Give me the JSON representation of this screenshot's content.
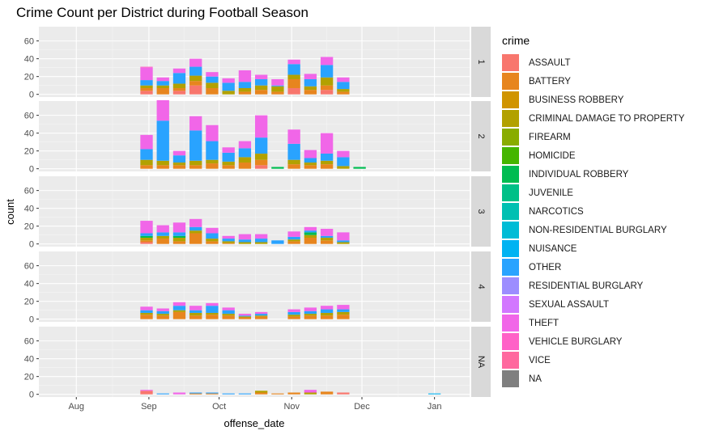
{
  "title": "Crime Count per District during Football Season",
  "chart_data": {
    "type": "bar",
    "stacked": true,
    "title": "Crime Count per District during Football Season",
    "xlabel": "offense_date",
    "ylabel": "count",
    "x_ticks": [
      "Aug",
      "Sep",
      "Oct",
      "Nov",
      "Dec",
      "Jan"
    ],
    "x_tick_dates": [
      "2017-08-01",
      "2017-09-01",
      "2017-10-01",
      "2017-11-01",
      "2017-12-01",
      "2018-01-01"
    ],
    "xlim": [
      "2017-07-16",
      "2018-01-16"
    ],
    "y_ticks": [
      0,
      20,
      40,
      60
    ],
    "ylim": [
      -3,
      76
    ],
    "grid": true,
    "legend_position": "right",
    "legend_title": "crime",
    "categories": [
      {
        "name": "ASSAULT",
        "color": "#F8766D"
      },
      {
        "name": "BATTERY",
        "color": "#E7851E"
      },
      {
        "name": "BUSINESS ROBBERY",
        "color": "#D09400"
      },
      {
        "name": "CRIMINAL DAMAGE TO PROPERTY",
        "color": "#B2A100"
      },
      {
        "name": "FIREARM",
        "color": "#89AC00"
      },
      {
        "name": "HOMICIDE",
        "color": "#45B500"
      },
      {
        "name": "INDIVIDUAL ROBBERY",
        "color": "#00BC51"
      },
      {
        "name": "JUVENILE",
        "color": "#00C087"
      },
      {
        "name": "NARCOTICS",
        "color": "#00C0B2"
      },
      {
        "name": "NON-RESIDENTIAL BURGLARY",
        "color": "#00BCD6"
      },
      {
        "name": "NUISANCE",
        "color": "#00B3F2"
      },
      {
        "name": "OTHER",
        "color": "#29A3FF"
      },
      {
        "name": "RESIDENTIAL BURGLARY",
        "color": "#9C8DFF"
      },
      {
        "name": "SEXUAL ASSAULT",
        "color": "#D277FF"
      },
      {
        "name": "THEFT",
        "color": "#F166E8"
      },
      {
        "name": "VEHICLE BURGLARY",
        "color": "#FF61C7"
      },
      {
        "name": "VICE",
        "color": "#FF689E"
      },
      {
        "name": "NA",
        "color": "#7F7F7F"
      }
    ],
    "panels": [
      {
        "label": "1",
        "bars": [
          {
            "date": "2017-08-31",
            "values": {
              "THEFT": 14,
              "VEHICLE BURGLARY": 1,
              "OTHER": 6,
              "CRIMINAL DAMAGE TO PROPERTY": 3,
              "BATTERY": 3,
              "ASSAULT": 4
            }
          },
          {
            "date": "2017-09-07",
            "values": {
              "THEFT": 4,
              "OTHER": 5,
              "CRIMINAL DAMAGE TO PROPERTY": 3,
              "BATTERY": 7
            }
          },
          {
            "date": "2017-09-14",
            "values": {
              "THEFT": 5,
              "OTHER": 12,
              "CRIMINAL DAMAGE TO PROPERTY": 5,
              "BATTERY": 3,
              "ASSAULT": 4
            }
          },
          {
            "date": "2017-09-21",
            "values": {
              "THEFT": 9,
              "OTHER": 10,
              "CRIMINAL DAMAGE TO PROPERTY": 6,
              "BATTERY": 5,
              "ASSAULT": 10
            }
          },
          {
            "date": "2017-09-28",
            "values": {
              "THEFT": 5,
              "OTHER": 7,
              "CRIMINAL DAMAGE TO PROPERTY": 6,
              "BATTERY": 7
            }
          },
          {
            "date": "2017-10-05",
            "values": {
              "THEFT": 5,
              "OTHER": 9,
              "CRIMINAL DAMAGE TO PROPERTY": 4
            }
          },
          {
            "date": "2017-10-12",
            "values": {
              "THEFT": 13,
              "OTHER": 7,
              "CRIMINAL DAMAGE TO PROPERTY": 4,
              "BATTERY": 3
            }
          },
          {
            "date": "2017-10-19",
            "values": {
              "THEFT": 5,
              "OTHER": 7,
              "CRIMINAL DAMAGE TO PROPERTY": 5,
              "BATTERY": 5
            }
          },
          {
            "date": "2017-10-26",
            "values": {
              "THEFT": 7,
              "OTHER": 1,
              "CRIMINAL DAMAGE TO PROPERTY": 6,
              "BATTERY": 3
            }
          },
          {
            "date": "2017-11-02",
            "values": {
              "THEFT": 5,
              "OTHER": 12,
              "CRIMINAL DAMAGE TO PROPERTY": 5,
              "BATTERY": 10,
              "ASSAULT": 7
            }
          },
          {
            "date": "2017-11-09",
            "values": {
              "THEFT": 6,
              "OTHER": 8,
              "CRIMINAL DAMAGE TO PROPERTY": 4,
              "BATTERY": 5
            }
          },
          {
            "date": "2017-11-16",
            "values": {
              "THEFT": 9,
              "OTHER": 14,
              "CRIMINAL DAMAGE TO PROPERTY": 9,
              "BATTERY": 5,
              "ASSAULT": 5
            }
          },
          {
            "date": "2017-11-23",
            "values": {
              "THEFT": 5,
              "OTHER": 8,
              "CRIMINAL DAMAGE TO PROPERTY": 3,
              "BATTERY": 3
            }
          }
        ]
      },
      {
        "label": "2",
        "bars": [
          {
            "date": "2017-08-31",
            "values": {
              "THEFT": 16,
              "OTHER": 12,
              "CRIMINAL DAMAGE TO PROPERTY": 6,
              "BATTERY": 4
            }
          },
          {
            "date": "2017-09-07",
            "values": {
              "THEFT": 23,
              "OTHER": 45,
              "CRIMINAL DAMAGE TO PROPERTY": 5,
              "BATTERY": 4
            }
          },
          {
            "date": "2017-09-14",
            "values": {
              "THEFT": 5,
              "OTHER": 8,
              "CRIMINAL DAMAGE TO PROPERTY": 3,
              "BATTERY": 4
            }
          },
          {
            "date": "2017-09-21",
            "values": {
              "THEFT": 16,
              "OTHER": 34,
              "CRIMINAL DAMAGE TO PROPERTY": 5,
              "BATTERY": 4
            }
          },
          {
            "date": "2017-09-28",
            "values": {
              "THEFT": 18,
              "OTHER": 21,
              "CRIMINAL DAMAGE TO PROPERTY": 4,
              "BATTERY": 6
            }
          },
          {
            "date": "2017-10-05",
            "values": {
              "THEFT": 6,
              "OTHER": 10,
              "CRIMINAL DAMAGE TO PROPERTY": 4,
              "BATTERY": 4
            }
          },
          {
            "date": "2017-10-12",
            "values": {
              "THEFT": 8,
              "OTHER": 10,
              "CRIMINAL DAMAGE TO PROPERTY": 6,
              "BATTERY": 7
            }
          },
          {
            "date": "2017-10-19",
            "values": {
              "THEFT": 25,
              "OTHER": 18,
              "CRIMINAL DAMAGE TO PROPERTY": 7,
              "BATTERY": 6,
              "ASSAULT": 4
            }
          },
          {
            "date": "2017-10-26",
            "values": {
              "INDIVIDUAL ROBBERY": 2
            }
          },
          {
            "date": "2017-11-02",
            "values": {
              "THEFT": 16,
              "OTHER": 18,
              "CRIMINAL DAMAGE TO PROPERTY": 5,
              "BATTERY": 5
            }
          },
          {
            "date": "2017-11-09",
            "values": {
              "THEFT": 9,
              "OTHER": 5,
              "CRIMINAL DAMAGE TO PROPERTY": 3,
              "BATTERY": 4
            }
          },
          {
            "date": "2017-11-16",
            "values": {
              "THEFT": 23,
              "OTHER": 8,
              "CRIMINAL DAMAGE TO PROPERTY": 4,
              "BATTERY": 5
            }
          },
          {
            "date": "2017-11-23",
            "values": {
              "THEFT": 7,
              "OTHER": 10,
              "CRIMINAL DAMAGE TO PROPERTY": 3
            }
          },
          {
            "date": "2017-11-30",
            "values": {
              "INDIVIDUAL ROBBERY": 2
            }
          }
        ]
      },
      {
        "label": "3",
        "bars": [
          {
            "date": "2017-08-31",
            "values": {
              "INDIVIDUAL ROBBERY": 2,
              "THEFT": 14,
              "OTHER": 3,
              "CRIMINAL DAMAGE TO PROPERTY": 3,
              "BATTERY": 2,
              "ASSAULT": 2
            }
          },
          {
            "date": "2017-09-07",
            "values": {
              "THEFT": 8,
              "OTHER": 4,
              "CRIMINAL DAMAGE TO PROPERTY": 3,
              "BATTERY": 6
            }
          },
          {
            "date": "2017-09-14",
            "values": {
              "INDIVIDUAL ROBBERY": 2,
              "THEFT": 11,
              "OTHER": 4,
              "CRIMINAL DAMAGE TO PROPERTY": 4,
              "BATTERY": 3
            }
          },
          {
            "date": "2017-09-21",
            "values": {
              "THEFT": 9,
              "OTHER": 4,
              "CRIMINAL DAMAGE TO PROPERTY": 3,
              "BATTERY": 12
            }
          },
          {
            "date": "2017-09-28",
            "values": {
              "THEFT": 6,
              "OTHER": 6,
              "CRIMINAL DAMAGE TO PROPERTY": 3,
              "BATTERY": 3
            }
          },
          {
            "date": "2017-10-05",
            "values": {
              "THEFT": 3,
              "OTHER": 3,
              "CRIMINAL DAMAGE TO PROPERTY": 2,
              "BATTERY": 1
            }
          },
          {
            "date": "2017-10-12",
            "values": {
              "THEFT": 6,
              "OTHER": 3,
              "CRIMINAL DAMAGE TO PROPERTY": 2
            }
          },
          {
            "date": "2017-10-19",
            "values": {
              "THEFT": 5,
              "OTHER": 4,
              "CRIMINAL DAMAGE TO PROPERTY": 2
            }
          },
          {
            "date": "2017-10-26",
            "values": {
              "OTHER": 4
            }
          },
          {
            "date": "2017-11-02",
            "values": {
              "THEFT": 6,
              "OTHER": 3,
              "CRIMINAL DAMAGE TO PROPERTY": 2,
              "BATTERY": 3
            }
          },
          {
            "date": "2017-11-09",
            "values": {
              "INDIVIDUAL ROBBERY": 3,
              "THEFT": 4,
              "OTHER": 2,
              "CRIMINAL DAMAGE TO PROPERTY": 3,
              "BATTERY": 7
            }
          },
          {
            "date": "2017-11-16",
            "values": {
              "THEFT": 8,
              "OTHER": 2,
              "CRIMINAL DAMAGE TO PROPERTY": 3,
              "BATTERY": 4
            }
          },
          {
            "date": "2017-11-23",
            "values": {
              "THEFT": 9,
              "OTHER": 2,
              "CRIMINAL DAMAGE TO PROPERTY": 2
            }
          }
        ]
      },
      {
        "label": "4",
        "bars": [
          {
            "date": "2017-08-31",
            "values": {
              "THEFT": 4,
              "OTHER": 3,
              "CRIMINAL DAMAGE TO PROPERTY": 2,
              "BATTERY": 5
            }
          },
          {
            "date": "2017-09-07",
            "values": {
              "THEFT": 3,
              "OTHER": 3,
              "CRIMINAL DAMAGE TO PROPERTY": 2,
              "BATTERY": 4
            }
          },
          {
            "date": "2017-09-14",
            "values": {
              "THEFT": 4,
              "OTHER": 5,
              "CRIMINAL DAMAGE TO PROPERTY": 2,
              "BATTERY": 8
            }
          },
          {
            "date": "2017-09-21",
            "values": {
              "THEFT": 5,
              "OTHER": 3,
              "CRIMINAL DAMAGE TO PROPERTY": 3,
              "BATTERY": 4
            }
          },
          {
            "date": "2017-09-28",
            "values": {
              "THEFT": 3,
              "OTHER": 8,
              "CRIMINAL DAMAGE TO PROPERTY": 2,
              "BATTERY": 5
            }
          },
          {
            "date": "2017-10-05",
            "values": {
              "THEFT": 3,
              "OTHER": 4,
              "CRIMINAL DAMAGE TO PROPERTY": 2,
              "BATTERY": 4
            }
          },
          {
            "date": "2017-10-12",
            "values": {
              "THEFT": 2,
              "OTHER": 1,
              "CRIMINAL DAMAGE TO PROPERTY": 1,
              "BATTERY": 2
            }
          },
          {
            "date": "2017-10-19",
            "values": {
              "THEFT": 2,
              "OTHER": 2,
              "CRIMINAL DAMAGE TO PROPERTY": 1,
              "BATTERY": 3
            }
          },
          {
            "date": "2017-11-02",
            "values": {
              "THEFT": 3,
              "OTHER": 3,
              "CRIMINAL DAMAGE TO PROPERTY": 2,
              "BATTERY": 3
            }
          },
          {
            "date": "2017-11-09",
            "values": {
              "THEFT": 4,
              "OTHER": 3,
              "CRIMINAL DAMAGE TO PROPERTY": 2,
              "BATTERY": 4
            }
          },
          {
            "date": "2017-11-16",
            "values": {
              "THEFT": 4,
              "OTHER": 4,
              "CRIMINAL DAMAGE TO PROPERTY": 3,
              "BATTERY": 4
            }
          },
          {
            "date": "2017-11-23",
            "values": {
              "THEFT": 5,
              "OTHER": 3,
              "CRIMINAL DAMAGE TO PROPERTY": 3,
              "BATTERY": 5
            }
          }
        ]
      },
      {
        "label": "NA",
        "bars": [
          {
            "date": "2017-08-31",
            "values": {
              "THEFT": 1,
              "ASSAULT": 4
            }
          },
          {
            "date": "2017-09-07",
            "values": {
              "OTHER": 1
            }
          },
          {
            "date": "2017-09-14",
            "values": {
              "THEFT": 2
            }
          },
          {
            "date": "2017-09-21",
            "values": {
              "OTHER": 1,
              "BATTERY": 1
            }
          },
          {
            "date": "2017-09-28",
            "values": {
              "OTHER": 1,
              "BATTERY": 1
            }
          },
          {
            "date": "2017-10-05",
            "values": {
              "OTHER": 1
            }
          },
          {
            "date": "2017-10-12",
            "values": {
              "OTHER": 1
            }
          },
          {
            "date": "2017-10-19",
            "values": {
              "BATTERY": 2,
              "CRIMINAL DAMAGE TO PROPERTY": 2
            }
          },
          {
            "date": "2017-10-26",
            "values": {
              "BATTERY": 1
            }
          },
          {
            "date": "2017-11-02",
            "values": {
              "BATTERY": 2
            }
          },
          {
            "date": "2017-11-09",
            "values": {
              "THEFT": 3,
              "CRIMINAL DAMAGE TO PROPERTY": 2
            }
          },
          {
            "date": "2017-11-16",
            "values": {
              "BATTERY": 3
            }
          },
          {
            "date": "2017-11-23",
            "values": {
              "ASSAULT": 2
            }
          },
          {
            "date": "2018-01-01",
            "values": {
              "NUISANCE": 1
            }
          }
        ]
      }
    ]
  }
}
